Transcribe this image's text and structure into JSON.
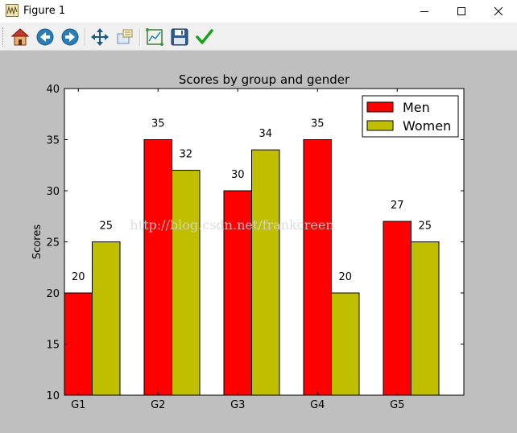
{
  "window": {
    "title": "Figure 1",
    "controls": [
      "minimize",
      "maximize",
      "close"
    ]
  },
  "toolbar": {
    "buttons": [
      {
        "name": "home",
        "icon": "home-icon"
      },
      {
        "name": "back",
        "icon": "back-arrow-icon"
      },
      {
        "name": "forward",
        "icon": "forward-arrow-icon"
      },
      {
        "name": "pan",
        "icon": "move-arrows-icon"
      },
      {
        "name": "zoom",
        "icon": "zoom-rect-icon"
      },
      {
        "name": "subplots",
        "icon": "subplots-config-icon"
      },
      {
        "name": "save",
        "icon": "floppy-disk-icon"
      },
      {
        "name": "edit",
        "icon": "checkmark-icon"
      }
    ]
  },
  "watermark": "http://blog.csdn.net/frankcreen",
  "colors": {
    "men": "#ff0000",
    "women": "#bfbf00",
    "figure_bg": "#bfbfbf",
    "axes_bg": "#ffffff"
  },
  "chart_data": {
    "type": "bar",
    "title": "Scores by group and gender",
    "xlabel": "",
    "ylabel": "Scores",
    "categories": [
      "G1",
      "G2",
      "G3",
      "G4",
      "G5"
    ],
    "series": [
      {
        "name": "Men",
        "values": [
          20,
          35,
          30,
          35,
          27
        ],
        "color": "#ff0000"
      },
      {
        "name": "Women",
        "values": [
          25,
          32,
          34,
          20,
          25
        ],
        "color": "#bfbf00"
      }
    ],
    "ylim": [
      10,
      40
    ],
    "yticks": [
      "10",
      "15",
      "20",
      "25",
      "30",
      "35",
      "40"
    ],
    "legend": "top-right",
    "grid": false
  }
}
